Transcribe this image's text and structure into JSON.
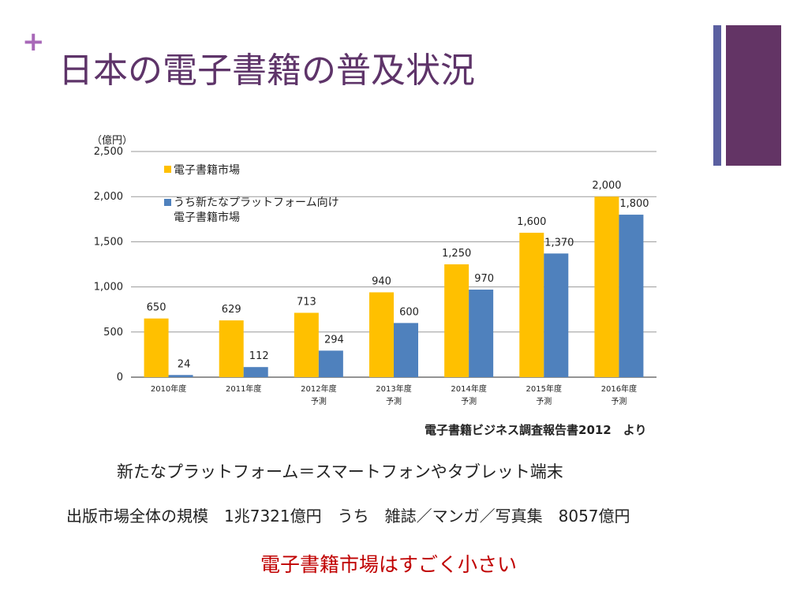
{
  "slide": {
    "plus_symbol": "+",
    "title": "日本の電子書籍の普及状況",
    "source_note": "電子書籍ビジネス調査報告書2012　より",
    "line1": "新たなプラットフォーム＝スマートフォンやタブレット端末",
    "line2": "出版市場全体の規模　1兆7321億円　うち　雑誌／マンガ／写真集　8057億円",
    "line3": "電子書籍市場はすごく小さい"
  },
  "colors": {
    "accent_purple": "#5e3469",
    "plus_color": "#a868b8",
    "deco_thin": "#5a5fa0",
    "deco_thick": "#633465",
    "series_total": "#ffc000",
    "series_new": "#4f81bd",
    "highlight_red": "#c00000",
    "grid": "#9a9a9a"
  },
  "chart_data": {
    "type": "bar",
    "unit_label": "（億円）",
    "categories": [
      {
        "year": "2010年度",
        "note": ""
      },
      {
        "year": "2011年度",
        "note": ""
      },
      {
        "year": "2012年度",
        "note": "予測"
      },
      {
        "year": "2013年度",
        "note": "予測"
      },
      {
        "year": "2014年度",
        "note": "予測"
      },
      {
        "year": "2015年度",
        "note": "予測"
      },
      {
        "year": "2016年度",
        "note": "予測"
      }
    ],
    "series": [
      {
        "name": "電子書籍市場",
        "values": [
          650,
          629,
          713,
          940,
          1250,
          1600,
          2000
        ],
        "labels": [
          "650",
          "629",
          "713",
          "940",
          "1,250",
          "1,600",
          "2,000"
        ]
      },
      {
        "name": "うち新たなプラットフォーム向け電子書籍市場",
        "name_lines": [
          "うち新たなプラットフォーム向け",
          "電子書籍市場"
        ],
        "values": [
          24,
          112,
          294,
          600,
          970,
          1370,
          1800
        ],
        "labels": [
          "24",
          "112",
          "294",
          "600",
          "970",
          "1,370",
          "1,800"
        ]
      }
    ],
    "ylim": [
      0,
      2500
    ],
    "yticks": [
      0,
      500,
      1000,
      1500,
      2000,
      2500
    ],
    "ytick_labels": [
      "0",
      "500",
      "1,000",
      "1,500",
      "2,000",
      "2,500"
    ],
    "grid": true,
    "legend_position": "top-left"
  }
}
